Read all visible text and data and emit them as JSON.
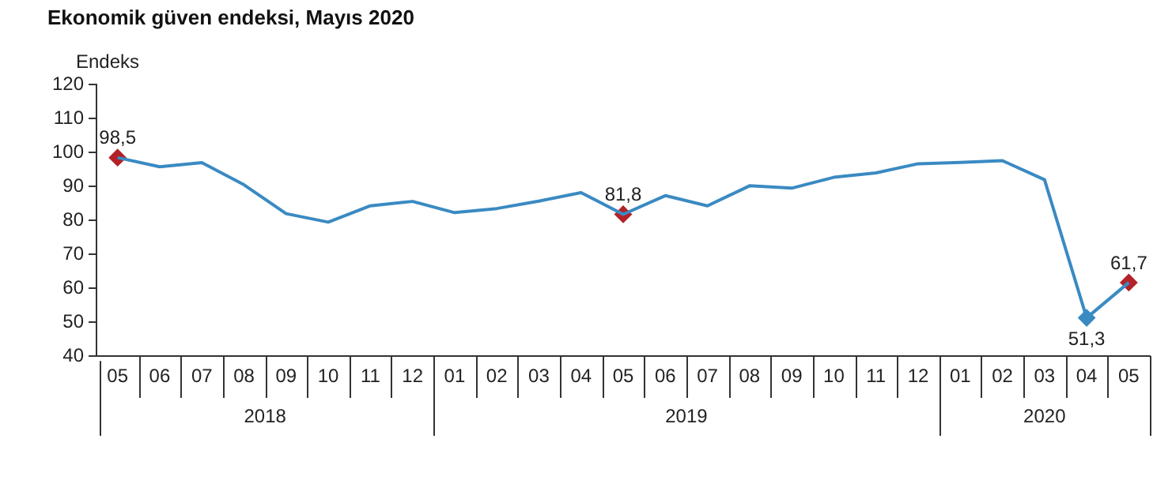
{
  "chart_data": {
    "type": "line",
    "title": "Ekonomik güven endeksi, Mayıs 2020",
    "ylabel": "Endeks",
    "categories": [
      "05",
      "06",
      "07",
      "08",
      "09",
      "10",
      "11",
      "12",
      "01",
      "02",
      "03",
      "04",
      "05",
      "06",
      "07",
      "08",
      "09",
      "10",
      "11",
      "12",
      "01",
      "02",
      "03",
      "04",
      "05"
    ],
    "annotations": [
      "2018",
      "2019",
      "2020"
    ],
    "series": [
      {
        "color": "#3a8ac2",
        "marker": "none",
        "values": [
          98.5,
          95.8,
          97,
          90.5,
          82,
          79.5,
          84.3,
          85.6,
          82.3,
          83.5,
          85.7,
          88.2,
          81.8,
          87.3,
          84.3,
          90.2,
          89.5,
          92.7,
          94,
          96.7,
          97.1,
          97.6,
          92,
          51.3,
          61.7
        ]
      },
      {
        "type": "scatter",
        "marker": "diamond",
        "values": [
          98.5,
          null,
          null,
          null,
          null,
          null,
          null,
          null,
          null,
          null,
          null,
          null,
          81.8,
          null,
          null,
          null,
          null,
          null,
          null,
          null,
          null,
          null,
          null,
          51.3,
          61.7
        ],
        "colors": [
          "#b22228",
          null,
          null,
          null,
          null,
          null,
          null,
          null,
          null,
          null,
          null,
          null,
          "#b22228",
          null,
          null,
          null,
          null,
          null,
          null,
          null,
          null,
          null,
          null,
          "#3a8ac2",
          "#b22228"
        ],
        "value_labels": [
          "98,5",
          null,
          null,
          null,
          null,
          null,
          null,
          null,
          null,
          null,
          null,
          null,
          "81,8",
          null,
          null,
          null,
          null,
          null,
          null,
          null,
          null,
          null,
          null,
          "51,3",
          "61,7"
        ]
      }
    ],
    "ylim": [
      40,
      120
    ],
    "yticks": [
      40,
      50,
      60,
      70,
      80,
      90,
      100,
      110,
      120
    ],
    "grid": false,
    "legend": false,
    "line_style": "solid"
  }
}
